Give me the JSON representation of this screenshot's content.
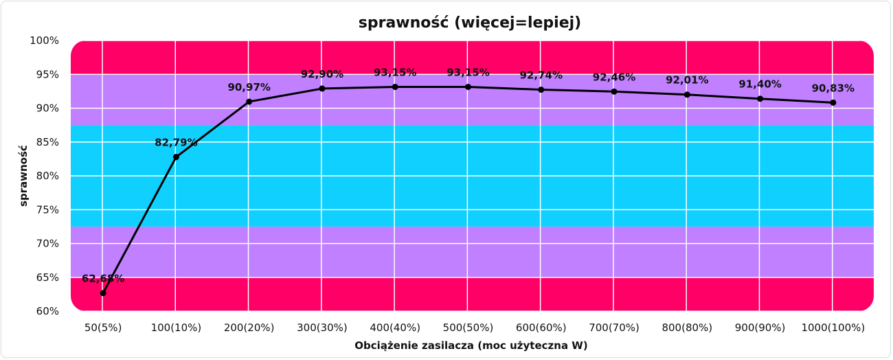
{
  "chart_data": {
    "type": "line",
    "title": "sprawność (więcej=lepiej)",
    "xlabel": "Obciążenie zasilacza (moc użyteczna W)",
    "ylabel": "sprawność",
    "categories": [
      "50(5%)",
      "100(10%)",
      "200(20%)",
      "300(30%)",
      "400(40%)",
      "500(50%)",
      "600(60%)",
      "700(70%)",
      "800(80%)",
      "900(90%)",
      "1000(100%)"
    ],
    "values": [
      62.68,
      82.79,
      90.97,
      92.9,
      93.15,
      93.15,
      92.74,
      92.46,
      92.01,
      91.4,
      90.83
    ],
    "data_labels": [
      "62,68%",
      "82,79%",
      "90,97%",
      "92,90%",
      "93,15%",
      "93,15%",
      "92,74%",
      "92,46%",
      "92,01%",
      "91,40%",
      "90,83%"
    ],
    "ylim": [
      60,
      100
    ],
    "yticks": [
      60,
      65,
      70,
      75,
      80,
      85,
      90,
      95,
      100
    ],
    "ytick_labels": [
      "60%",
      "65%",
      "70%",
      "75%",
      "80%",
      "85%",
      "90%",
      "95%",
      "100%"
    ],
    "grid": true,
    "bands": [
      {
        "from": 60,
        "to": 65,
        "color": "#ff0066"
      },
      {
        "from": 65,
        "to": 72.5,
        "color": "#c080ff"
      },
      {
        "from": 72.5,
        "to": 87.5,
        "color": "#10d0ff"
      },
      {
        "from": 87.5,
        "to": 95,
        "color": "#c080ff"
      },
      {
        "from": 95,
        "to": 100,
        "color": "#ff0066"
      }
    ],
    "line_color": "#000000"
  }
}
